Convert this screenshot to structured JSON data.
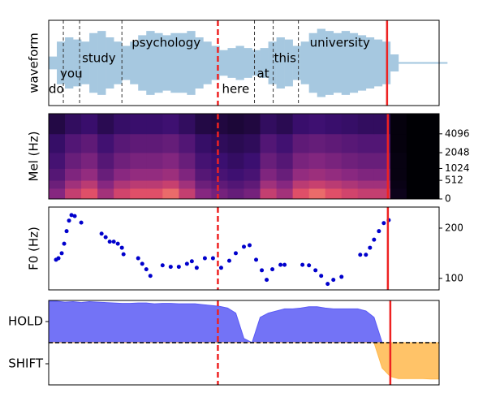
{
  "chart_data": [
    {
      "type": "waveform",
      "ylabel": "waveform",
      "color": "#a6c8e0",
      "xlim": [
        0,
        48
      ],
      "ylim": [
        -1,
        1
      ],
      "x": [
        0,
        1,
        2,
        3,
        4,
        5,
        6,
        7,
        8,
        9,
        10,
        11,
        12,
        13,
        14,
        15,
        16,
        17,
        18,
        19,
        20,
        21,
        22,
        23,
        24,
        25,
        26,
        27,
        28,
        29,
        30,
        31,
        32,
        33,
        34,
        35,
        36,
        37,
        38,
        39,
        40,
        41,
        42,
        43,
        44,
        45,
        46,
        47,
        48
      ],
      "values": [
        0.15,
        0.5,
        0.6,
        0.55,
        0.5,
        0.7,
        0.75,
        0.6,
        0.5,
        0.4,
        0.5,
        0.65,
        0.75,
        0.7,
        0.65,
        0.7,
        0.7,
        0.75,
        0.6,
        0.5,
        0.4,
        0.3,
        0.35,
        0.4,
        0.35,
        0.3,
        0.35,
        0.5,
        0.6,
        0.55,
        0.4,
        0.5,
        0.7,
        0.8,
        0.75,
        0.7,
        0.75,
        0.7,
        0.65,
        0.6,
        0.55,
        0.5,
        0.2,
        0.02,
        0.02,
        0.02,
        0.02,
        0.02,
        0.02
      ],
      "words": [
        {
          "text": "do",
          "x": 0.0
        },
        {
          "text": "you",
          "x": 1.4
        },
        {
          "text": "study",
          "x": 4.1
        },
        {
          "text": "psychology",
          "x": 10.2
        },
        {
          "text": "here",
          "x": 21.3
        },
        {
          "text": "at",
          "x": 25.6
        },
        {
          "text": "this",
          "x": 27.7
        },
        {
          "text": "university",
          "x": 32.1
        }
      ],
      "boundaries": [
        1.8,
        3.8,
        9.0,
        25.3,
        27.6,
        30.7
      ],
      "vlines": [
        {
          "x": 20.8,
          "color": "#ee2222",
          "style": "dashed"
        },
        {
          "x": 41.6,
          "color": "#ee2222",
          "style": "solid"
        }
      ]
    },
    {
      "type": "heatmap",
      "ylabel": "Mel (Hz)",
      "colormap": "magma",
      "yscale": "mel",
      "ytick_side": "right",
      "xlim": [
        0,
        48
      ],
      "ylim": [
        0,
        8000
      ],
      "yticks": [
        0,
        512,
        1024,
        2048,
        4096
      ],
      "x": [
        0,
        2,
        4,
        6,
        8,
        10,
        12,
        14,
        16,
        18,
        20,
        22,
        24,
        26,
        28,
        30,
        32,
        34,
        36,
        38,
        40,
        42,
        44,
        46,
        48
      ],
      "bins": [
        0,
        256,
        512,
        1024,
        2048,
        4096,
        8000
      ],
      "values": [
        [
          0.48,
          0.67,
          0.76,
          0.57,
          0.71,
          0.76,
          0.76,
          0.81,
          0.67,
          0.48,
          0.43,
          0.38,
          0.43,
          0.67,
          0.57,
          0.76,
          0.81,
          0.76,
          0.71,
          0.67,
          0.67,
          0.05,
          0,
          0
        ],
        [
          0.4,
          0.56,
          0.64,
          0.48,
          0.6,
          0.64,
          0.64,
          0.68,
          0.56,
          0.4,
          0.36,
          0.32,
          0.36,
          0.56,
          0.48,
          0.64,
          0.68,
          0.64,
          0.6,
          0.56,
          0.56,
          0.04,
          0,
          0
        ],
        [
          0.33,
          0.46,
          0.52,
          0.39,
          0.49,
          0.52,
          0.52,
          0.55,
          0.46,
          0.33,
          0.29,
          0.26,
          0.29,
          0.46,
          0.39,
          0.52,
          0.55,
          0.52,
          0.49,
          0.46,
          0.46,
          0.03,
          0,
          0
        ],
        [
          0.28,
          0.39,
          0.44,
          0.33,
          0.41,
          0.44,
          0.44,
          0.47,
          0.39,
          0.28,
          0.25,
          0.22,
          0.25,
          0.39,
          0.33,
          0.44,
          0.47,
          0.44,
          0.41,
          0.39,
          0.39,
          0.03,
          0,
          0
        ],
        [
          0.23,
          0.32,
          0.36,
          0.27,
          0.34,
          0.36,
          0.36,
          0.38,
          0.32,
          0.23,
          0.2,
          0.18,
          0.2,
          0.32,
          0.27,
          0.36,
          0.38,
          0.36,
          0.34,
          0.32,
          0.32,
          0.02,
          0,
          0
        ],
        [
          0.15,
          0.21,
          0.24,
          0.18,
          0.23,
          0.24,
          0.24,
          0.26,
          0.21,
          0.15,
          0.14,
          0.12,
          0.14,
          0.21,
          0.18,
          0.24,
          0.26,
          0.24,
          0.23,
          0.21,
          0.21,
          0.02,
          0,
          0
        ]
      ],
      "vlines": [
        {
          "x": 20.8,
          "color": "#ee2222",
          "style": "dashed"
        },
        {
          "x": 41.7,
          "color": "#ee2222",
          "style": "solid"
        }
      ]
    },
    {
      "type": "scatter",
      "ylabel": "F0 (Hz)",
      "color": "#0000cc",
      "ytick_side": "right",
      "xlim": [
        0,
        48
      ],
      "ylim": [
        77,
        242
      ],
      "yticks": [
        100,
        200
      ],
      "x": [
        0.9,
        1.2,
        1.6,
        1.9,
        2.2,
        2.5,
        2.8,
        3.2,
        4.0,
        6.5,
        7.0,
        7.5,
        8.0,
        8.5,
        9.0,
        9.2,
        11.0,
        11.5,
        12.0,
        12.5,
        14.0,
        15.0,
        16.0,
        17.0,
        17.6,
        18.2,
        19.2,
        20.2,
        21.2,
        22.2,
        23.0,
        24.0,
        24.7,
        25.5,
        26.2,
        26.8,
        27.5,
        28.5,
        29.0,
        31.2,
        32.0,
        32.8,
        33.5,
        34.3,
        35.0,
        36.0,
        38.3,
        39.0,
        39.5,
        40.0,
        40.6,
        41.2,
        41.8
      ],
      "values": [
        137,
        140,
        150,
        169,
        194,
        215,
        226,
        224,
        211,
        189,
        182,
        173,
        173,
        169,
        161,
        148,
        140,
        129,
        118,
        105,
        126,
        123,
        123,
        129,
        134,
        121,
        140,
        140,
        121,
        135,
        150,
        163,
        166,
        137,
        116,
        97,
        118,
        127,
        127,
        127,
        126,
        116,
        105,
        89,
        97,
        103,
        147,
        147,
        161,
        177,
        194,
        210,
        216
      ],
      "vlines": [
        {
          "x": 20.8,
          "color": "#ee2222",
          "style": "dashed"
        },
        {
          "x": 41.7,
          "color": "#ee2222",
          "style": "solid"
        }
      ]
    },
    {
      "type": "area",
      "xlim": [
        0,
        48
      ],
      "ylim": [
        -1,
        1
      ],
      "yticks": [
        {
          "value": 0.5,
          "label": "HOLD"
        },
        {
          "value": -0.5,
          "label": "SHIFT"
        }
      ],
      "x": [
        0,
        1,
        2,
        3,
        4,
        5,
        6,
        7,
        8,
        9,
        10,
        11,
        12,
        13,
        14,
        15,
        16,
        17,
        18,
        19,
        20,
        21,
        22,
        23,
        24,
        25,
        26,
        27,
        28,
        29,
        30,
        31,
        32,
        33,
        34,
        35,
        36,
        37,
        38,
        39,
        40,
        41,
        42,
        43,
        44,
        45,
        46,
        47,
        48
      ],
      "series": [
        {
          "color": "#5a5af5",
          "values": [
            0.98,
            0.98,
            0.96,
            0.97,
            0.95,
            0.97,
            0.96,
            0.95,
            0.94,
            0.93,
            0.93,
            0.94,
            0.94,
            0.92,
            0.93,
            0.93,
            0.92,
            0.92,
            0.92,
            0.9,
            0.88,
            0.86,
            0.82,
            0.7,
            0.1,
            0.0,
            0.6,
            0.7,
            0.75,
            0.8,
            0.8,
            0.82,
            0.85,
            0.85,
            0.82,
            0.8,
            0.8,
            0.8,
            0.8,
            0.75,
            0.6,
            0,
            0,
            0,
            0,
            0,
            0,
            0,
            0
          ]
        },
        {
          "color": "#ffb84d",
          "values": [
            0,
            0,
            0,
            0,
            0,
            0,
            0,
            0,
            0,
            0,
            0,
            0,
            0,
            0,
            0,
            0,
            0,
            0,
            0,
            0,
            0,
            0,
            0,
            0,
            0,
            0,
            0,
            0,
            0,
            0,
            0,
            0,
            0,
            0,
            0,
            0,
            0,
            0,
            0,
            0,
            0,
            -0.6,
            -0.8,
            -0.85,
            -0.85,
            -0.85,
            -0.85,
            -0.86,
            -0.86
          ]
        }
      ],
      "hlines": [
        {
          "y": 0,
          "color": "#000000",
          "style": "dashed"
        }
      ],
      "vlines": [
        {
          "x": 20.8,
          "color": "#ee2222",
          "style": "dashed"
        },
        {
          "x": 42.0,
          "color": "#ee2222",
          "style": "solid"
        }
      ]
    }
  ]
}
